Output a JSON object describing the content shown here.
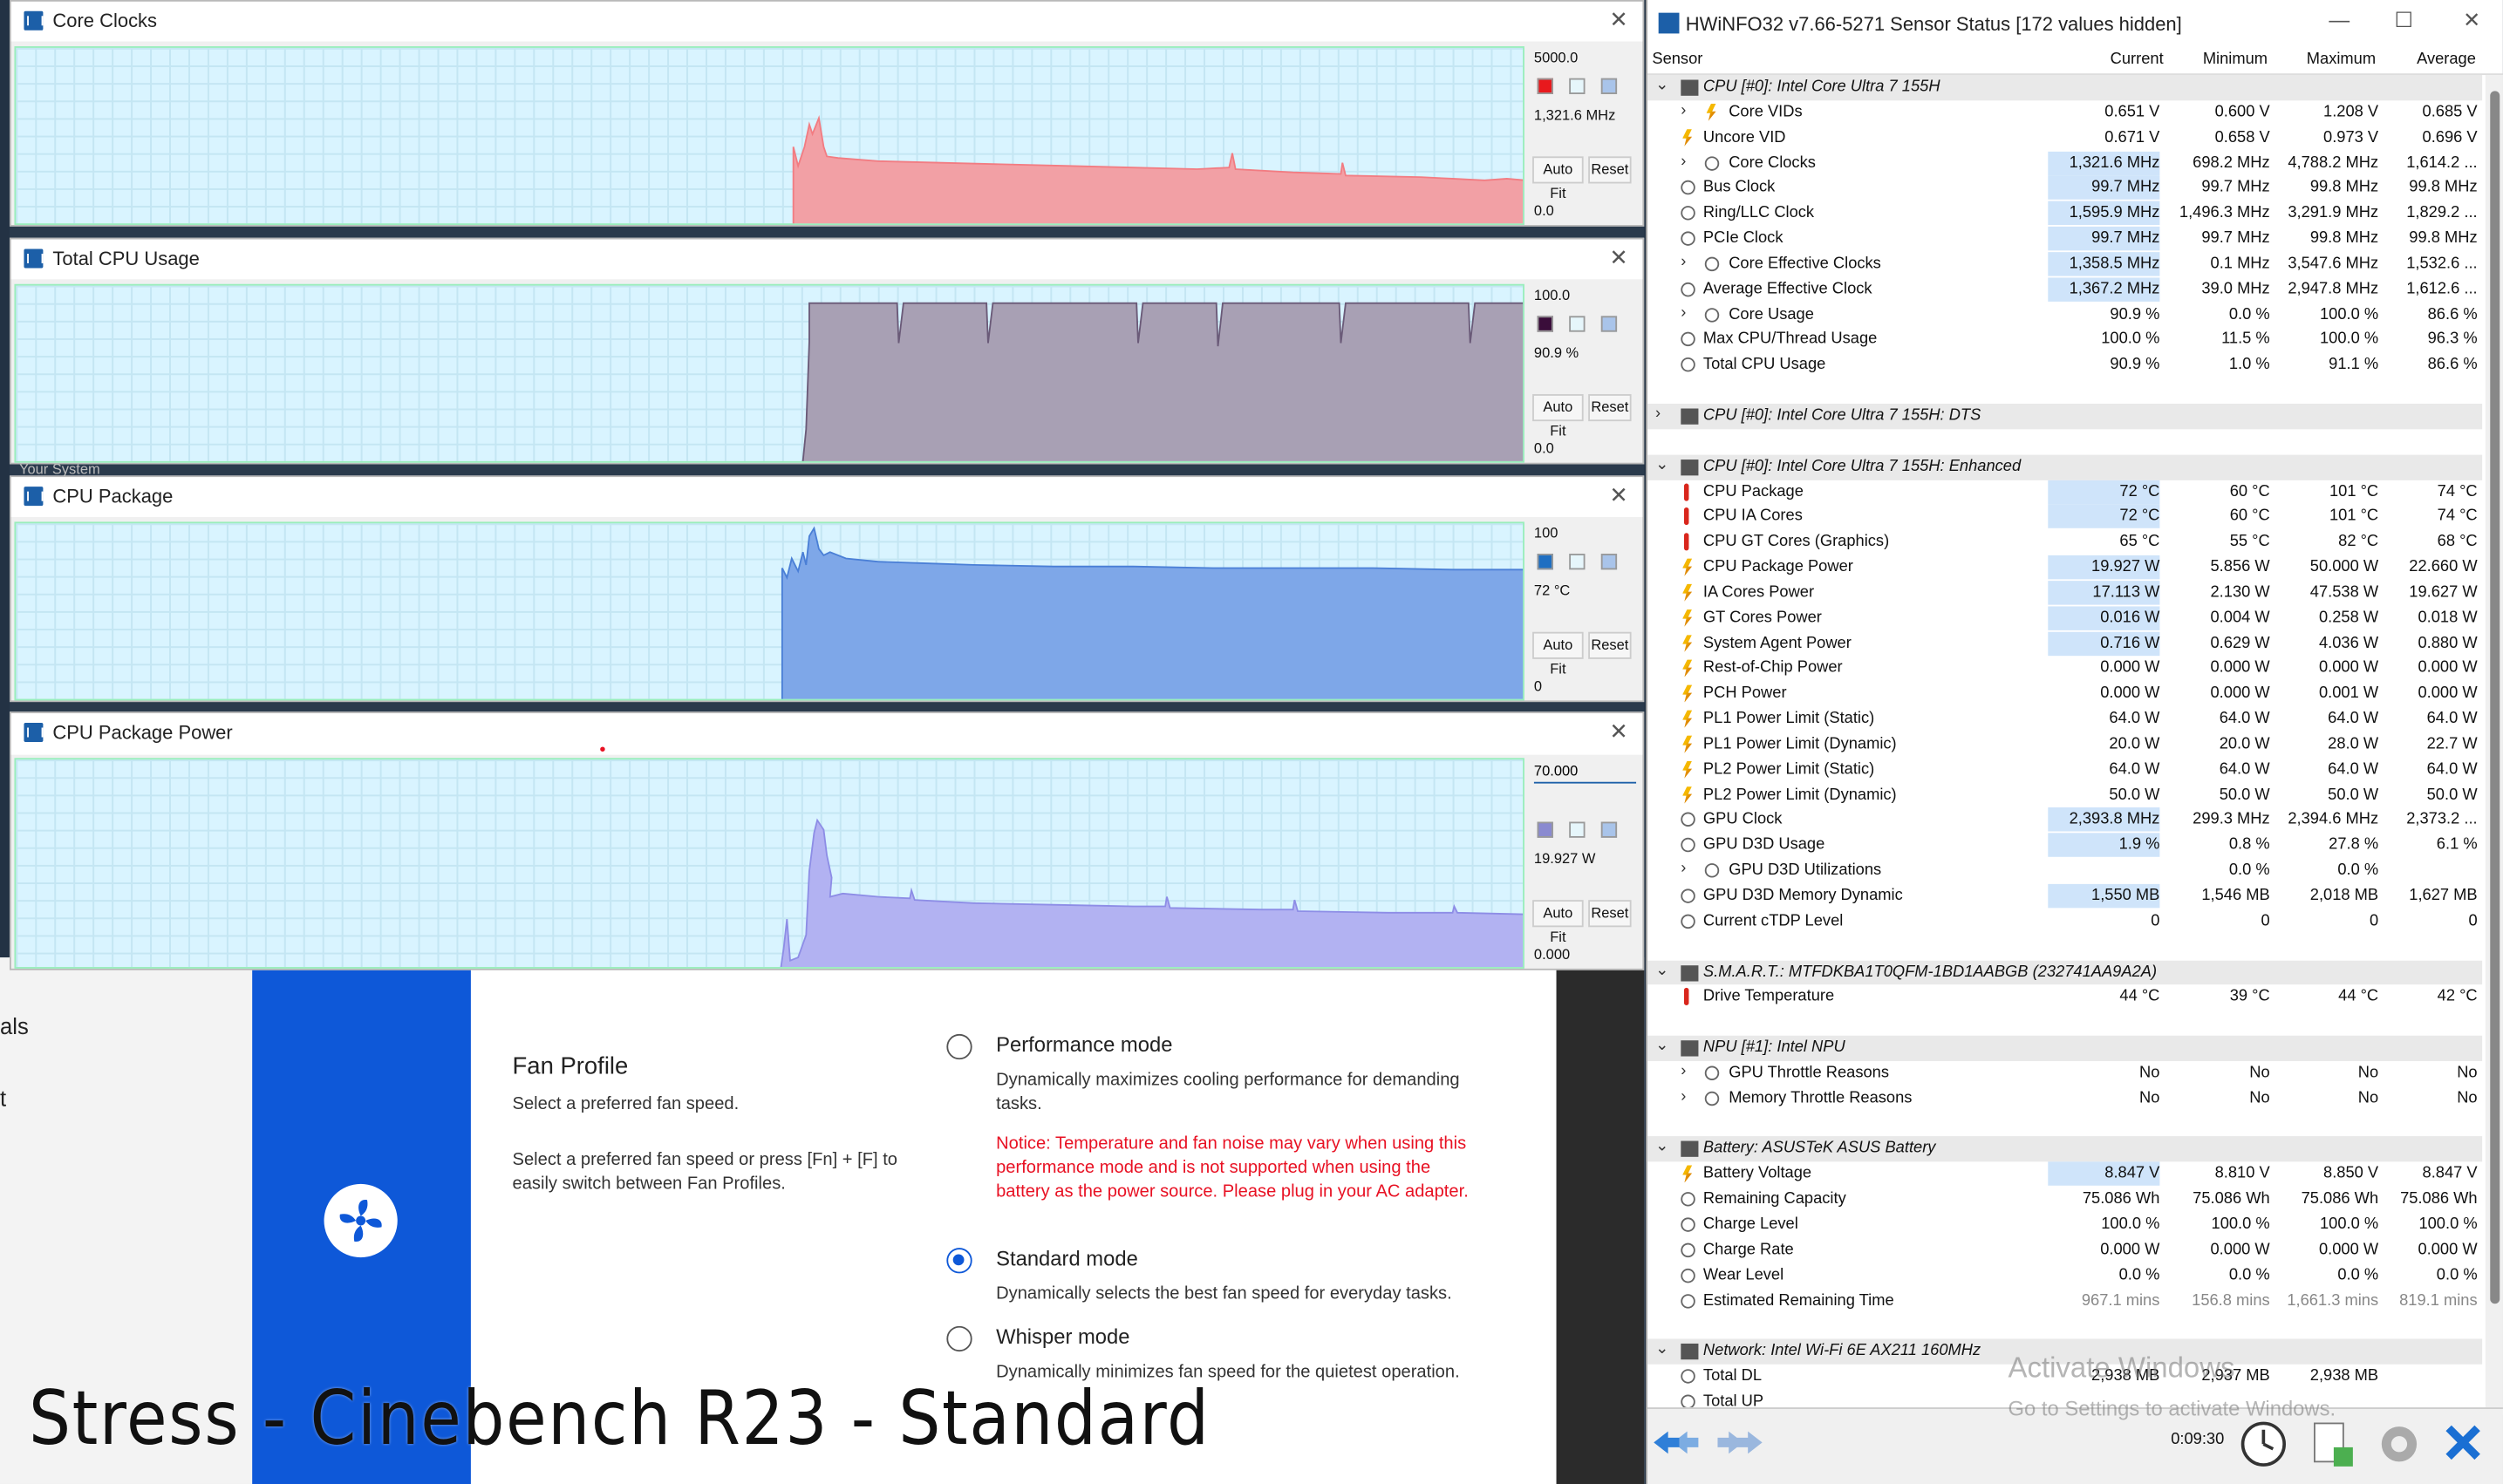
{
  "graphs": [
    {
      "title": "Core Clocks",
      "max": "5000.0",
      "current": "1,321.6 MHz",
      "min": "0.0",
      "color": "#e8191d",
      "fill": "#f2a0a5",
      "stroke": "#f27c82"
    },
    {
      "title": "Total CPU Usage",
      "max": "100.0",
      "current": "90.9 %",
      "min": "0.0",
      "color": "#3a0d3a",
      "fill": "#a8a0b4",
      "stroke": "#6a5a78"
    },
    {
      "title": "CPU Package",
      "max": "100",
      "current": "72 °C",
      "min": "0",
      "color": "#1f6fc2",
      "fill": "#7ea7e8",
      "stroke": "#4a7fd6"
    },
    {
      "title": "CPU Package Power",
      "max": "70.000",
      "current": "19.927 W",
      "min": "0.000",
      "color": "#8a8ad0",
      "fill": "#b2b2f2",
      "stroke": "#8d8de6"
    }
  ],
  "graph_buttons": {
    "autofit": "Auto Fit",
    "reset": "Reset"
  },
  "graph_close": "✕",
  "bg_app": {
    "nav1": "als",
    "nav2": "t",
    "fan_profile_title": "Fan Profile",
    "fan_profile_sub": "Select a preferred fan speed.",
    "fan_profile_hint": "Select a preferred fan speed or press [Fn] + [F] to easily switch between Fan Profiles.",
    "options": [
      {
        "title": "Performance mode",
        "desc": "Dynamically maximizes cooling performance for demanding tasks.",
        "selected": false
      },
      {
        "title": "Standard mode",
        "desc": "Dynamically selects the best fan speed for everyday tasks.",
        "selected": true
      },
      {
        "title": "Whisper mode",
        "desc": "Dynamically minimizes fan speed for the quietest operation.",
        "selected": false
      }
    ],
    "notice": "Notice: Temperature and fan noise may vary when using this performance mode and is not supported when using the battery as the power source. Please plug in your AC adapter.",
    "your_system": "Your System"
  },
  "overlay_title": "Stress - Cinebench R23 - Standard",
  "hwinfo": {
    "title": "HWiNFO32 v7.66-5271 Sensor Status [172 values hidden]",
    "columns": [
      "Sensor",
      "Current",
      "Minimum",
      "Maximum",
      "Average"
    ],
    "controls": {
      "min": "—",
      "max": "☐",
      "close": "✕"
    },
    "rows": [
      {
        "type": "group",
        "label": "CPU [#0]: Intel Core Ultra 7 155H",
        "open": true
      },
      {
        "type": "s",
        "icon": "volt",
        "exp": true,
        "label": "Core VIDs",
        "c": "0.651 V",
        "mn": "0.600 V",
        "mx": "1.208 V",
        "av": "0.685 V"
      },
      {
        "type": "s",
        "icon": "volt",
        "label": "Uncore VID",
        "c": "0.671 V",
        "mn": "0.658 V",
        "mx": "0.973 V",
        "av": "0.696 V"
      },
      {
        "type": "s",
        "icon": "clock",
        "exp": true,
        "label": "Core Clocks",
        "c": "1,321.6 MHz",
        "mn": "698.2 MHz",
        "mx": "4,788.2 MHz",
        "av": "1,614.2 ...",
        "hl": true
      },
      {
        "type": "s",
        "icon": "clock",
        "label": "Bus Clock",
        "c": "99.7 MHz",
        "mn": "99.7 MHz",
        "mx": "99.8 MHz",
        "av": "99.8 MHz",
        "hl": true
      },
      {
        "type": "s",
        "icon": "clock",
        "label": "Ring/LLC Clock",
        "c": "1,595.9 MHz",
        "mn": "1,496.3 MHz",
        "mx": "3,291.9 MHz",
        "av": "1,829.2 ...",
        "hl": true
      },
      {
        "type": "s",
        "icon": "clock",
        "label": "PCIe Clock",
        "c": "99.7 MHz",
        "mn": "99.7 MHz",
        "mx": "99.8 MHz",
        "av": "99.8 MHz",
        "hl": true
      },
      {
        "type": "s",
        "icon": "clock",
        "exp": true,
        "label": "Core Effective Clocks",
        "c": "1,358.5 MHz",
        "mn": "0.1 MHz",
        "mx": "3,547.6 MHz",
        "av": "1,532.6 ...",
        "hl": true
      },
      {
        "type": "s",
        "icon": "clock",
        "label": "Average Effective Clock",
        "c": "1,367.2 MHz",
        "mn": "39.0 MHz",
        "mx": "2,947.8 MHz",
        "av": "1,612.6 ...",
        "hl": true
      },
      {
        "type": "s",
        "icon": "clock",
        "exp": true,
        "label": "Core Usage",
        "c": "90.9 %",
        "mn": "0.0 %",
        "mx": "100.0 %",
        "av": "86.6 %"
      },
      {
        "type": "s",
        "icon": "clock",
        "label": "Max CPU/Thread Usage",
        "c": "100.0 %",
        "mn": "11.5 %",
        "mx": "100.0 %",
        "av": "96.3 %"
      },
      {
        "type": "s",
        "icon": "clock",
        "label": "Total CPU Usage",
        "c": "90.9 %",
        "mn": "1.0 %",
        "mx": "91.1 %",
        "av": "86.6 %"
      },
      {
        "type": "blank"
      },
      {
        "type": "group",
        "label": "CPU [#0]: Intel Core Ultra 7 155H: DTS",
        "open": false
      },
      {
        "type": "blank"
      },
      {
        "type": "group",
        "label": "CPU [#0]: Intel Core Ultra 7 155H: Enhanced",
        "open": true
      },
      {
        "type": "s",
        "icon": "temp",
        "label": "CPU Package",
        "c": "72 °C",
        "mn": "60 °C",
        "mx": "101 °C",
        "av": "74 °C",
        "hl": true
      },
      {
        "type": "s",
        "icon": "temp",
        "label": "CPU IA Cores",
        "c": "72 °C",
        "mn": "60 °C",
        "mx": "101 °C",
        "av": "74 °C",
        "hl": true
      },
      {
        "type": "s",
        "icon": "temp",
        "label": "CPU GT Cores (Graphics)",
        "c": "65 °C",
        "mn": "55 °C",
        "mx": "82 °C",
        "av": "68 °C"
      },
      {
        "type": "s",
        "icon": "volt",
        "label": "CPU Package Power",
        "c": "19.927 W",
        "mn": "5.856 W",
        "mx": "50.000 W",
        "av": "22.660 W",
        "hl": true
      },
      {
        "type": "s",
        "icon": "volt",
        "label": "IA Cores Power",
        "c": "17.113 W",
        "mn": "2.130 W",
        "mx": "47.538 W",
        "av": "19.627 W",
        "hl": true
      },
      {
        "type": "s",
        "icon": "volt",
        "label": "GT Cores Power",
        "c": "0.016 W",
        "mn": "0.004 W",
        "mx": "0.258 W",
        "av": "0.018 W",
        "hl": true
      },
      {
        "type": "s",
        "icon": "volt",
        "label": "System Agent Power",
        "c": "0.716 W",
        "mn": "0.629 W",
        "mx": "4.036 W",
        "av": "0.880 W",
        "hl": true
      },
      {
        "type": "s",
        "icon": "volt",
        "label": "Rest-of-Chip Power",
        "c": "0.000 W",
        "mn": "0.000 W",
        "mx": "0.000 W",
        "av": "0.000 W"
      },
      {
        "type": "s",
        "icon": "volt",
        "label": "PCH Power",
        "c": "0.000 W",
        "mn": "0.000 W",
        "mx": "0.001 W",
        "av": "0.000 W"
      },
      {
        "type": "s",
        "icon": "volt",
        "label": "PL1 Power Limit (Static)",
        "c": "64.0 W",
        "mn": "64.0 W",
        "mx": "64.0 W",
        "av": "64.0 W"
      },
      {
        "type": "s",
        "icon": "volt",
        "label": "PL1 Power Limit (Dynamic)",
        "c": "20.0 W",
        "mn": "20.0 W",
        "mx": "28.0 W",
        "av": "22.7 W"
      },
      {
        "type": "s",
        "icon": "volt",
        "label": "PL2 Power Limit (Static)",
        "c": "64.0 W",
        "mn": "64.0 W",
        "mx": "64.0 W",
        "av": "64.0 W"
      },
      {
        "type": "s",
        "icon": "volt",
        "label": "PL2 Power Limit (Dynamic)",
        "c": "50.0 W",
        "mn": "50.0 W",
        "mx": "50.0 W",
        "av": "50.0 W"
      },
      {
        "type": "s",
        "icon": "clock",
        "label": "GPU Clock",
        "c": "2,393.8 MHz",
        "mn": "299.3 MHz",
        "mx": "2,394.6 MHz",
        "av": "2,373.2 ...",
        "hl": true
      },
      {
        "type": "s",
        "icon": "clock",
        "label": "GPU D3D Usage",
        "c": "1.9 %",
        "mn": "0.8 %",
        "mx": "27.8 %",
        "av": "6.1 %",
        "hl": true
      },
      {
        "type": "s",
        "icon": "clock",
        "exp": true,
        "label": "GPU D3D Utilizations",
        "c": "",
        "mn": "0.0 %",
        "mx": "0.0 %",
        "av": ""
      },
      {
        "type": "s",
        "icon": "clock",
        "label": "GPU D3D Memory Dynamic",
        "c": "1,550 MB",
        "mn": "1,546 MB",
        "mx": "2,018 MB",
        "av": "1,627 MB",
        "hl": true
      },
      {
        "type": "s",
        "icon": "clock",
        "label": "Current cTDP Level",
        "c": "0",
        "mn": "0",
        "mx": "0",
        "av": "0"
      },
      {
        "type": "blank"
      },
      {
        "type": "group",
        "label": "S.M.A.R.T.: MTFDKBA1T0QFM-1BD1AABGB (232741AA9A2A)",
        "open": true
      },
      {
        "type": "s",
        "icon": "temp",
        "label": "Drive Temperature",
        "c": "44 °C",
        "mn": "39 °C",
        "mx": "44 °C",
        "av": "42 °C"
      },
      {
        "type": "blank"
      },
      {
        "type": "group",
        "label": "NPU [#1]: Intel NPU",
        "open": true
      },
      {
        "type": "s",
        "icon": "clock",
        "exp": true,
        "label": "GPU Throttle Reasons",
        "c": "No",
        "mn": "No",
        "mx": "No",
        "av": "No"
      },
      {
        "type": "s",
        "icon": "clock",
        "exp": true,
        "label": "Memory Throttle Reasons",
        "c": "No",
        "mn": "No",
        "mx": "No",
        "av": "No"
      },
      {
        "type": "blank"
      },
      {
        "type": "group",
        "label": "Battery: ASUSTeK ASUS Battery",
        "open": true
      },
      {
        "type": "s",
        "icon": "volt",
        "label": "Battery Voltage",
        "c": "8.847 V",
        "mn": "8.810 V",
        "mx": "8.850 V",
        "av": "8.847 V",
        "hl": true
      },
      {
        "type": "s",
        "icon": "clock",
        "label": "Remaining Capacity",
        "c": "75.086 Wh",
        "mn": "75.086 Wh",
        "mx": "75.086 Wh",
        "av": "75.086 Wh"
      },
      {
        "type": "s",
        "icon": "clock",
        "label": "Charge Level",
        "c": "100.0 %",
        "mn": "100.0 %",
        "mx": "100.0 %",
        "av": "100.0 %"
      },
      {
        "type": "s",
        "icon": "clock",
        "label": "Charge Rate",
        "c": "0.000 W",
        "mn": "0.000 W",
        "mx": "0.000 W",
        "av": "0.000 W"
      },
      {
        "type": "s",
        "icon": "clock",
        "label": "Wear Level",
        "c": "0.0 %",
        "mn": "0.0 %",
        "mx": "0.0 %",
        "av": "0.0 %"
      },
      {
        "type": "s",
        "icon": "clock",
        "label": "Estimated Remaining Time",
        "c": "967.1 mins",
        "mn": "156.8 mins",
        "mx": "1,661.3 mins",
        "av": "819.1 mins"
      },
      {
        "type": "blank"
      },
      {
        "type": "group",
        "label": "Network: Intel Wi-Fi 6E AX211 160MHz",
        "open": true
      },
      {
        "type": "s",
        "icon": "clock",
        "label": "Total DL",
        "c": "2,938 MB",
        "mn": "2,937 MB",
        "mx": "2,938 MB",
        "av": ""
      },
      {
        "type": "s",
        "icon": "clock",
        "label": "Total UP",
        "c": "",
        "mn": "",
        "mx": "",
        "av": ""
      }
    ],
    "timer": "0:09:30"
  },
  "watermark": {
    "line1": "Activate Windows",
    "line2": "Go to Settings to activate Windows."
  }
}
